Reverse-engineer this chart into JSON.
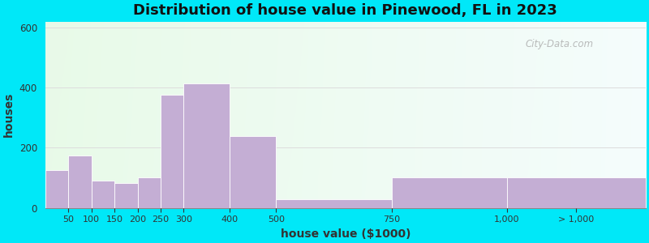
{
  "title": "Distribution of house value in Pinewood, FL in 2023",
  "xlabel": "house value ($1000)",
  "ylabel": "houses",
  "bar_color": "#c4aed4",
  "bar_edgecolor": "#ffffff",
  "background_outer": "#00e8f8",
  "ylim": [
    0,
    620
  ],
  "yticks": [
    0,
    200,
    400,
    600
  ],
  "watermark": "City-Data.com",
  "title_fontsize": 13,
  "label_fontsize": 10,
  "bar_left_edges": [
    0,
    50,
    100,
    150,
    200,
    250,
    300,
    400,
    500,
    750,
    1000
  ],
  "bar_right_edges": [
    50,
    100,
    150,
    200,
    250,
    300,
    400,
    500,
    750,
    1000,
    1300
  ],
  "bar_heights": [
    125,
    175,
    90,
    82,
    100,
    375,
    415,
    240,
    28,
    100,
    100
  ],
  "x_tick_positions": [
    50,
    100,
    150,
    200,
    250,
    300,
    400,
    500,
    750,
    1000,
    1150
  ],
  "x_tick_labels": [
    "50",
    "100",
    "150",
    "200",
    "250",
    "300",
    "400",
    "500",
    "750",
    "1,000",
    "> 1,000"
  ],
  "xlim": [
    0,
    1300
  ]
}
